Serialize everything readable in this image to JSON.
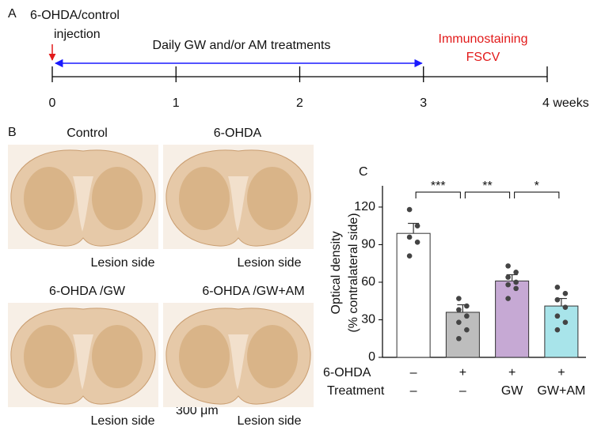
{
  "panel_a": {
    "label": "A",
    "start_label": [
      "6-OHDA/control",
      "injection"
    ],
    "treatment_label": "Daily GW and/or AM treatments",
    "end_label": [
      "Immunostaining",
      "FSCV"
    ],
    "xlim": [
      0,
      4
    ],
    "xticks": [
      0,
      1,
      2,
      3,
      {
        "value": 4,
        "label": "4 weeks"
      }
    ],
    "treatment_span": [
      0,
      3
    ]
  },
  "panel_b": {
    "label": "B",
    "images": [
      {
        "title": "Control",
        "caption": "Lesion side"
      },
      {
        "title": "6-OHDA",
        "caption": "Lesion side"
      },
      {
        "title": "6-OHDA /GW",
        "caption": "Lesion side"
      },
      {
        "title": "6-OHDA /GW+AM",
        "caption": "Lesion side"
      }
    ],
    "scale_bar": "300 μm"
  },
  "chart_data": {
    "type": "bar",
    "label": "C",
    "y_label": [
      "Optical density",
      "(% contralateral side)"
    ],
    "rows": [
      {
        "name": "6-OHDA",
        "values": [
          "–",
          "+",
          "+",
          "+"
        ]
      },
      {
        "name": "Treatment",
        "values": [
          "–",
          "–",
          "GW",
          "GW+AM"
        ]
      }
    ],
    "values": [
      99,
      36,
      61,
      41
    ],
    "errors": [
      8,
      6,
      5,
      6
    ],
    "colors": [
      "#ffffff",
      "#bdbdbd",
      "#c6a9d4",
      "#a8e4ea"
    ],
    "points": [
      [
        118,
        105,
        96,
        92,
        81
      ],
      [
        47,
        41,
        38,
        33,
        28,
        22,
        15
      ],
      [
        73,
        68,
        64,
        60,
        58,
        55,
        47
      ],
      [
        56,
        51,
        46,
        40,
        33,
        28,
        22
      ]
    ],
    "significance": [
      "***",
      "**",
      "*"
    ],
    "ylim": [
      0,
      137
    ],
    "yticks": [
      0,
      30,
      60,
      90,
      120
    ]
  }
}
